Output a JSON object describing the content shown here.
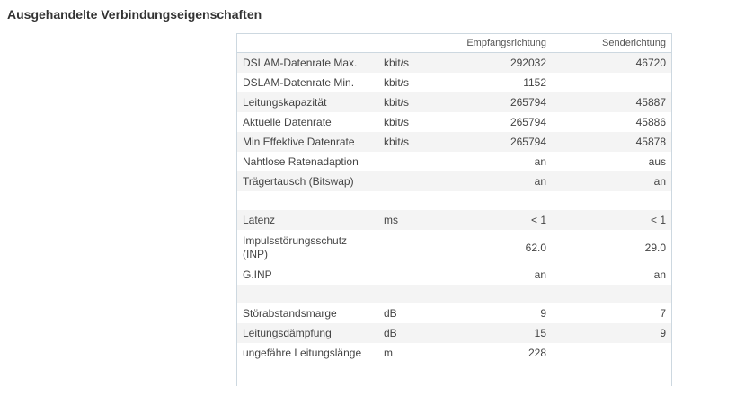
{
  "section_title": "Ausgehandelte Verbindungseigenschaften",
  "table": {
    "columns": [
      "",
      "",
      "Empfangsrichtung",
      "Senderichtung"
    ],
    "rows": [
      {
        "label": "DSLAM-Datenrate Max.",
        "unit": "kbit/s",
        "rx": "292032",
        "tx": "46720"
      },
      {
        "label": "DSLAM-Datenrate Min.",
        "unit": "kbit/s",
        "rx": "1152",
        "tx": ""
      },
      {
        "label": "Leitungskapazität",
        "unit": "kbit/s",
        "rx": "265794",
        "tx": "45887"
      },
      {
        "label": "Aktuelle Datenrate",
        "unit": "kbit/s",
        "rx": "265794",
        "tx": "45886"
      },
      {
        "label": "Min Effektive Datenrate",
        "unit": "kbit/s",
        "rx": "265794",
        "tx": "45878"
      },
      {
        "label": "Nahtlose Ratenadaption",
        "unit": "",
        "rx": "an",
        "tx": "aus"
      },
      {
        "label": "Trägertausch (Bitswap)",
        "unit": "",
        "rx": "an",
        "tx": "an"
      },
      {
        "label": "",
        "unit": "",
        "rx": "",
        "tx": ""
      },
      {
        "label": "Latenz",
        "unit": "ms",
        "rx": "< 1",
        "tx": "< 1"
      },
      {
        "label": "Impulsstörungsschutz (INP)",
        "unit": "",
        "rx": "62.0",
        "tx": "29.0"
      },
      {
        "label": "G.INP",
        "unit": "",
        "rx": "an",
        "tx": "an"
      },
      {
        "label": "",
        "unit": "",
        "rx": "",
        "tx": ""
      },
      {
        "label": "Störabstandsmarge",
        "unit": "dB",
        "rx": "9",
        "tx": "7"
      },
      {
        "label": "Leitungsdämpfung",
        "unit": "dB",
        "rx": "15",
        "tx": "9"
      },
      {
        "label": "ungefähre Leitungslänge",
        "unit": "m",
        "rx": "228",
        "tx": ""
      }
    ]
  }
}
